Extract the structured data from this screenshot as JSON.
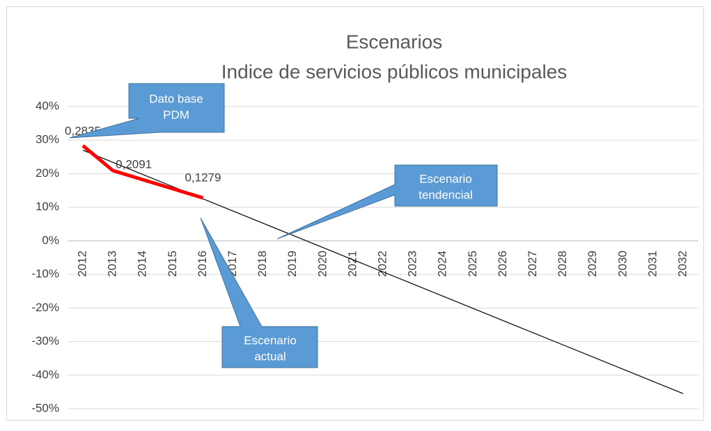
{
  "chart_data": {
    "type": "line",
    "title": "Escenarios",
    "subtitle": "Indice de servicios públicos municipales",
    "categories": [
      "2012",
      "2013",
      "2014",
      "2015",
      "2016",
      "2017",
      "2018",
      "2019",
      "2020",
      "2021",
      "2022",
      "2023",
      "2024",
      "2025",
      "2026",
      "2027",
      "2028",
      "2029",
      "2030",
      "2031",
      "2032"
    ],
    "series": [
      {
        "color": "#ff0000",
        "values": [
          28.35,
          20.91,
          18.2,
          15.5,
          12.79,
          null,
          null,
          null,
          null,
          null,
          null,
          null,
          null,
          null,
          null,
          null,
          null,
          null,
          null,
          null,
          null
        ],
        "value_labels": [
          "0,2835",
          "0,2091",
          null,
          null,
          "0,1279",
          null,
          null,
          null,
          null,
          null,
          null,
          null,
          null,
          null,
          null,
          null,
          null,
          null,
          null,
          null,
          null
        ]
      },
      {
        "color": "#000000",
        "values": [
          27,
          23.375,
          19.75,
          16.125,
          12.5,
          8.875,
          5.25,
          1.625,
          -2,
          -5.625,
          -9.25,
          -12.875,
          -16.5,
          -20.125,
          -23.75,
          -27.375,
          -31,
          -34.625,
          -38.25,
          -41.875,
          -45.5
        ]
      }
    ],
    "annotations": [
      [
        "Dato base",
        "PDM"
      ],
      [
        "Escenario",
        "tendencial"
      ],
      [
        "Escenario",
        "actual"
      ]
    ],
    "ylim": [
      -50,
      40
    ],
    "yticks": [
      {
        "value": -50,
        "label": "-50%"
      },
      {
        "value": -40,
        "label": "-40%"
      },
      {
        "value": -30,
        "label": "-30%"
      },
      {
        "value": -20,
        "label": "-20%"
      },
      {
        "value": -10,
        "label": "-10%"
      },
      {
        "value": 0,
        "label": "0%"
      },
      {
        "value": 10,
        "label": "10%"
      },
      {
        "value": 20,
        "label": "20%"
      },
      {
        "value": 30,
        "label": "30%"
      },
      {
        "value": 40,
        "label": "40%"
      }
    ],
    "grid": true
  }
}
